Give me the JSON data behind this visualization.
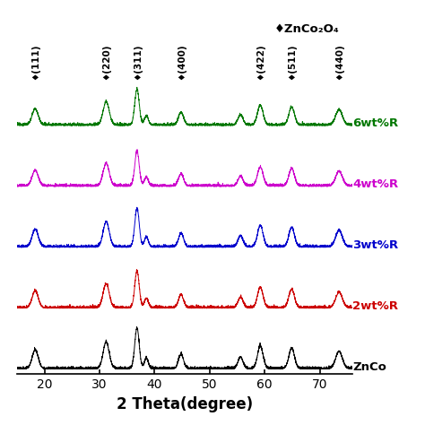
{
  "title": "♦ZnCo₂O₄",
  "xlabel": "2 Theta(degree)",
  "xlim": [
    15,
    76
  ],
  "xticks": [
    20,
    30,
    40,
    50,
    60,
    70
  ],
  "background_color": "#ffffff",
  "series_labels": [
    "ZnCo",
    "2wt%R",
    "3wt%R",
    "4wt%R",
    "6wt%R"
  ],
  "series_colors": [
    "#000000",
    "#cc0000",
    "#0000cc",
    "#cc00cc",
    "#007700"
  ],
  "series_offsets": [
    0.0,
    1.5,
    3.0,
    4.5,
    6.0
  ],
  "peak_positions": [
    18.3,
    31.2,
    36.8,
    38.5,
    44.8,
    55.6,
    59.2,
    64.9,
    73.5
  ],
  "peak_heights": [
    0.45,
    0.65,
    1.0,
    0.25,
    0.35,
    0.28,
    0.55,
    0.5,
    0.42
  ],
  "peak_widths": [
    0.55,
    0.55,
    0.4,
    0.35,
    0.45,
    0.45,
    0.5,
    0.5,
    0.6
  ],
  "annotation_peaks": [
    18.3,
    31.2,
    36.8,
    44.8,
    59.2,
    64.9,
    73.5
  ],
  "annotation_labels": [
    "♦(111)",
    "♦(220)",
    "♦(311)",
    "♦(400)",
    "♦(422)",
    "♦(511)",
    "♦(440)"
  ],
  "noise_amplitude": 0.025,
  "base_noise": 0.02,
  "label_fontsize": 9.5,
  "xlabel_fontsize": 12,
  "tick_fontsize": 10
}
